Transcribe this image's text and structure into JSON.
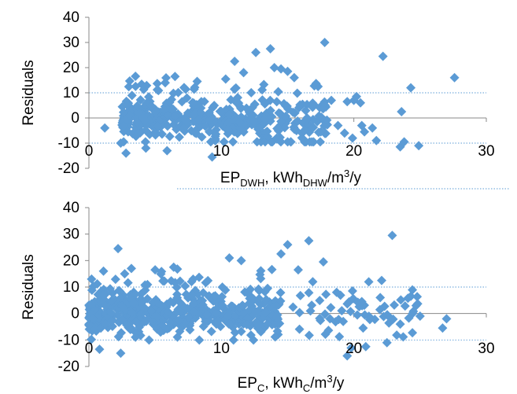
{
  "chart_data": [
    {
      "type": "scatter",
      "ylabel": "Residuals",
      "xlabel": {
        "base": "EP",
        "base_sub": "DWH",
        "rest": ", kWh",
        "rest_sub": "DHW",
        "tail": "/m",
        "tail_sup": "3",
        "end": "/y"
      },
      "xlim": [
        0,
        30
      ],
      "ylim": [
        -20,
        40
      ],
      "x_ticks": [
        "0",
        "10",
        "20",
        "30"
      ],
      "y_ticks": [
        "-20",
        "-10",
        "0",
        "10",
        "20",
        "30",
        "40"
      ],
      "marker_color": "#5B9BD5",
      "marker": "diamond",
      "gridlines_y": [
        -10,
        10
      ],
      "legend": "none"
    },
    {
      "type": "scatter",
      "ylabel": "Residuals",
      "xlabel": {
        "base": "EP",
        "base_sub": "C",
        "rest": ", kWh",
        "rest_sub": "C",
        "tail": "/m",
        "tail_sup": "3",
        "end": "/y"
      },
      "xlim": [
        0,
        30
      ],
      "ylim": [
        -20,
        40
      ],
      "x_ticks": [
        "0",
        "10",
        "20",
        "30"
      ],
      "y_ticks": [
        "-20",
        "-10",
        "0",
        "10",
        "20",
        "30",
        "40"
      ],
      "marker_color": "#5B9BD5",
      "marker": "diamond",
      "gridlines_y": [
        -10,
        10
      ],
      "legend": "none"
    }
  ]
}
